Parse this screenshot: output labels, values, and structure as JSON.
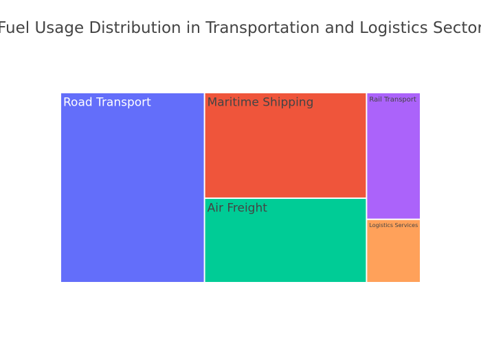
{
  "chart_data": {
    "type": "treemap",
    "title": "Fuel Usage Distribution in Transportation and Logistics Sector",
    "categories": [
      "Road Transport",
      "Maritime Shipping",
      "Air Freight",
      "Rail Transport",
      "Logistics Services"
    ],
    "values": [
      40,
      25,
      20,
      10,
      5
    ],
    "colors": [
      "#636efa",
      "#ef553b",
      "#00cc96",
      "#ab63fa",
      "#ffa15a"
    ],
    "label_colors": [
      "#ffffff",
      "#444444",
      "#444444",
      "#444444",
      "#444444"
    ]
  }
}
